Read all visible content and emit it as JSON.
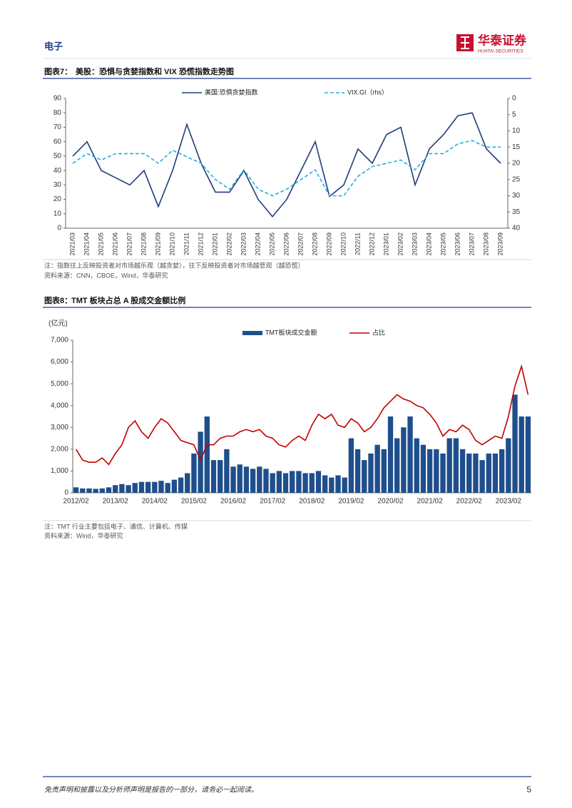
{
  "header": {
    "section": "电子",
    "brand": "华泰证券",
    "brand_en": "HUATAI SECURITIES"
  },
  "footer": {
    "disclaimer": "免责声明和披露以及分析师声明是报告的一部分，请务必一起阅读。",
    "page": "5"
  },
  "chart_data": [
    {
      "type": "line",
      "label": "图表7：",
      "title": "美股：恐惧与贪婪指数和 VIX 恐慌指数走势图",
      "notes": [
        "注：指数往上反映投资者对市场越乐观（越贪婪），往下反映投资者对市场越悲观（越恐慌）",
        "资料来源：CNN，CBOE，Wind，华泰研究"
      ],
      "categories": [
        "2021/03",
        "2021/04",
        "2021/05",
        "2021/06",
        "2021/07",
        "2021/08",
        "2021/09",
        "2021/10",
        "2021/11",
        "2021/12",
        "2022/01",
        "2022/02",
        "2022/03",
        "2022/04",
        "2022/05",
        "2022/06",
        "2022/07",
        "2022/08",
        "2022/09",
        "2022/10",
        "2022/11",
        "2022/12",
        "2023/01",
        "2023/02",
        "2023/03",
        "2023/04",
        "2023/05",
        "2023/06",
        "2023/07",
        "2023/08",
        "2023/09"
      ],
      "series": [
        {
          "name": "美国:恐惧贪婪指数",
          "color": "#1f3c7a",
          "style": "solid",
          "values": [
            50,
            60,
            40,
            35,
            30,
            40,
            15,
            40,
            72,
            45,
            25,
            25,
            40,
            20,
            8,
            20,
            40,
            60,
            22,
            30,
            55,
            45,
            65,
            70,
            30,
            55,
            65,
            78,
            80,
            55,
            45
          ]
        },
        {
          "name": "VIX.GI（rhs）",
          "color": "#22aee0",
          "style": "dashed",
          "axis": "y2",
          "values": [
            20,
            17,
            19,
            17,
            17,
            17,
            20,
            16,
            18,
            20,
            25,
            28,
            22,
            28,
            30,
            28,
            25,
            22,
            30,
            30,
            24,
            21,
            20,
            19,
            22,
            17,
            17,
            14,
            13,
            15,
            15
          ]
        }
      ],
      "ylim": [
        0,
        90
      ],
      "yticks": [
        0,
        10,
        20,
        30,
        40,
        50,
        60,
        70,
        80,
        90
      ],
      "y2lim": [
        40,
        0
      ],
      "y2ticks": [
        0,
        5,
        10,
        15,
        20,
        25,
        30,
        35,
        40
      ],
      "grid": false,
      "legend": "top"
    },
    {
      "type": "combo",
      "label": "图表8：",
      "title": "TMT 板块占总 A 股成交金额比例",
      "notes": [
        "注：TMT 行业主要包括电子、通信、计算机、传媒",
        "资料来源：Wind，华泰研究"
      ],
      "ylabel": "(亿元)",
      "categories": [
        "2012/02",
        null,
        null,
        null,
        null,
        null,
        "2013/02",
        null,
        null,
        null,
        null,
        null,
        "2014/02",
        null,
        null,
        null,
        null,
        null,
        "2015/02",
        null,
        null,
        null,
        null,
        null,
        "2016/02",
        null,
        null,
        null,
        null,
        null,
        "2017/02",
        null,
        null,
        null,
        null,
        null,
        "2018/02",
        null,
        null,
        null,
        null,
        null,
        "2019/02",
        null,
        null,
        null,
        null,
        null,
        "2020/02",
        null,
        null,
        null,
        null,
        null,
        "2021/02",
        null,
        null,
        null,
        null,
        null,
        "2022/02",
        null,
        null,
        null,
        null,
        null,
        "2023/02",
        null,
        null,
        null
      ],
      "series": [
        {
          "name": "TMT板块成交金额",
          "kind": "bar",
          "color": "#1f4e8c",
          "values": [
            250,
            200,
            200,
            180,
            200,
            250,
            350,
            400,
            350,
            450,
            500,
            500,
            500,
            550,
            450,
            600,
            700,
            900,
            1800,
            2800,
            3500,
            1500,
            1500,
            2000,
            1200,
            1300,
            1200,
            1100,
            1200,
            1100,
            900,
            1000,
            900,
            1000,
            1000,
            900,
            900,
            1000,
            800,
            700,
            800,
            700,
            2500,
            2000,
            1500,
            1800,
            2200,
            2000,
            3500,
            2500,
            3000,
            3500,
            2500,
            2200,
            2000,
            2000,
            1800,
            2500,
            2500,
            2000,
            1800,
            1800,
            1500,
            1800,
            1800,
            2000,
            2500,
            4500,
            3500,
            3500
          ]
        },
        {
          "name": "占比",
          "kind": "line",
          "color": "#c00000",
          "style": "solid",
          "values": [
            2000,
            1500,
            1400,
            1400,
            1600,
            1300,
            1800,
            2200,
            3000,
            3300,
            2800,
            2500,
            3000,
            3400,
            3200,
            2800,
            2400,
            2300,
            2200,
            1500,
            2200,
            2200,
            2500,
            2600,
            2600,
            2800,
            2900,
            2800,
            2900,
            2600,
            2500,
            2200,
            2100,
            2400,
            2600,
            2400,
            3100,
            3600,
            3400,
            3600,
            3100,
            3000,
            3400,
            3200,
            2800,
            3000,
            3400,
            3900,
            4200,
            4500,
            4300,
            4200,
            4000,
            3900,
            3600,
            3200,
            2600,
            2900,
            2800,
            3100,
            2900,
            2400,
            2200,
            2400,
            2600,
            2500,
            3500,
            4900,
            5800,
            4500
          ]
        }
      ],
      "ylim": [
        0,
        7000
      ],
      "yticks": [
        0,
        {
          "value": 1000,
          "label": "1,000"
        },
        {
          "value": 2000,
          "label": "2,000"
        },
        {
          "value": 3000,
          "label": "3,000"
        },
        {
          "value": 4000,
          "label": "4,000"
        },
        {
          "value": 5000,
          "label": "5,000"
        },
        {
          "value": 6000,
          "label": "6,000"
        },
        {
          "value": 7000,
          "label": "7,000"
        }
      ],
      "grid": false,
      "legend": "top"
    }
  ]
}
